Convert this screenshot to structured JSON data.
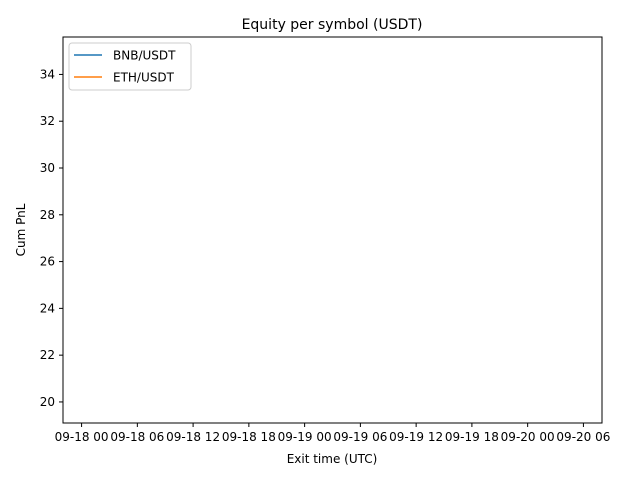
{
  "chart_data": {
    "type": "line",
    "title": "Equity per symbol (USDT)",
    "xlabel": "Exit time (UTC)",
    "ylabel": "Cum PnL",
    "x_ticks": [
      "09-18 00",
      "09-18 06",
      "09-18 12",
      "09-18 18",
      "09-19 00",
      "09-19 06",
      "09-19 12",
      "09-19 18",
      "09-20 00",
      "09-20 06"
    ],
    "y_ticks": [
      20,
      22,
      24,
      26,
      28,
      30,
      32,
      34
    ],
    "xlim": [
      "09-17 22",
      "09-20 08"
    ],
    "ylim": [
      19.1,
      35.6
    ],
    "grid": false,
    "legend_position": "top-left",
    "series": [
      {
        "name": "BNB/USDT",
        "color": "#1f77b4",
        "points": []
      },
      {
        "name": "ETH/USDT",
        "color": "#ff7f0e",
        "points": []
      }
    ]
  }
}
